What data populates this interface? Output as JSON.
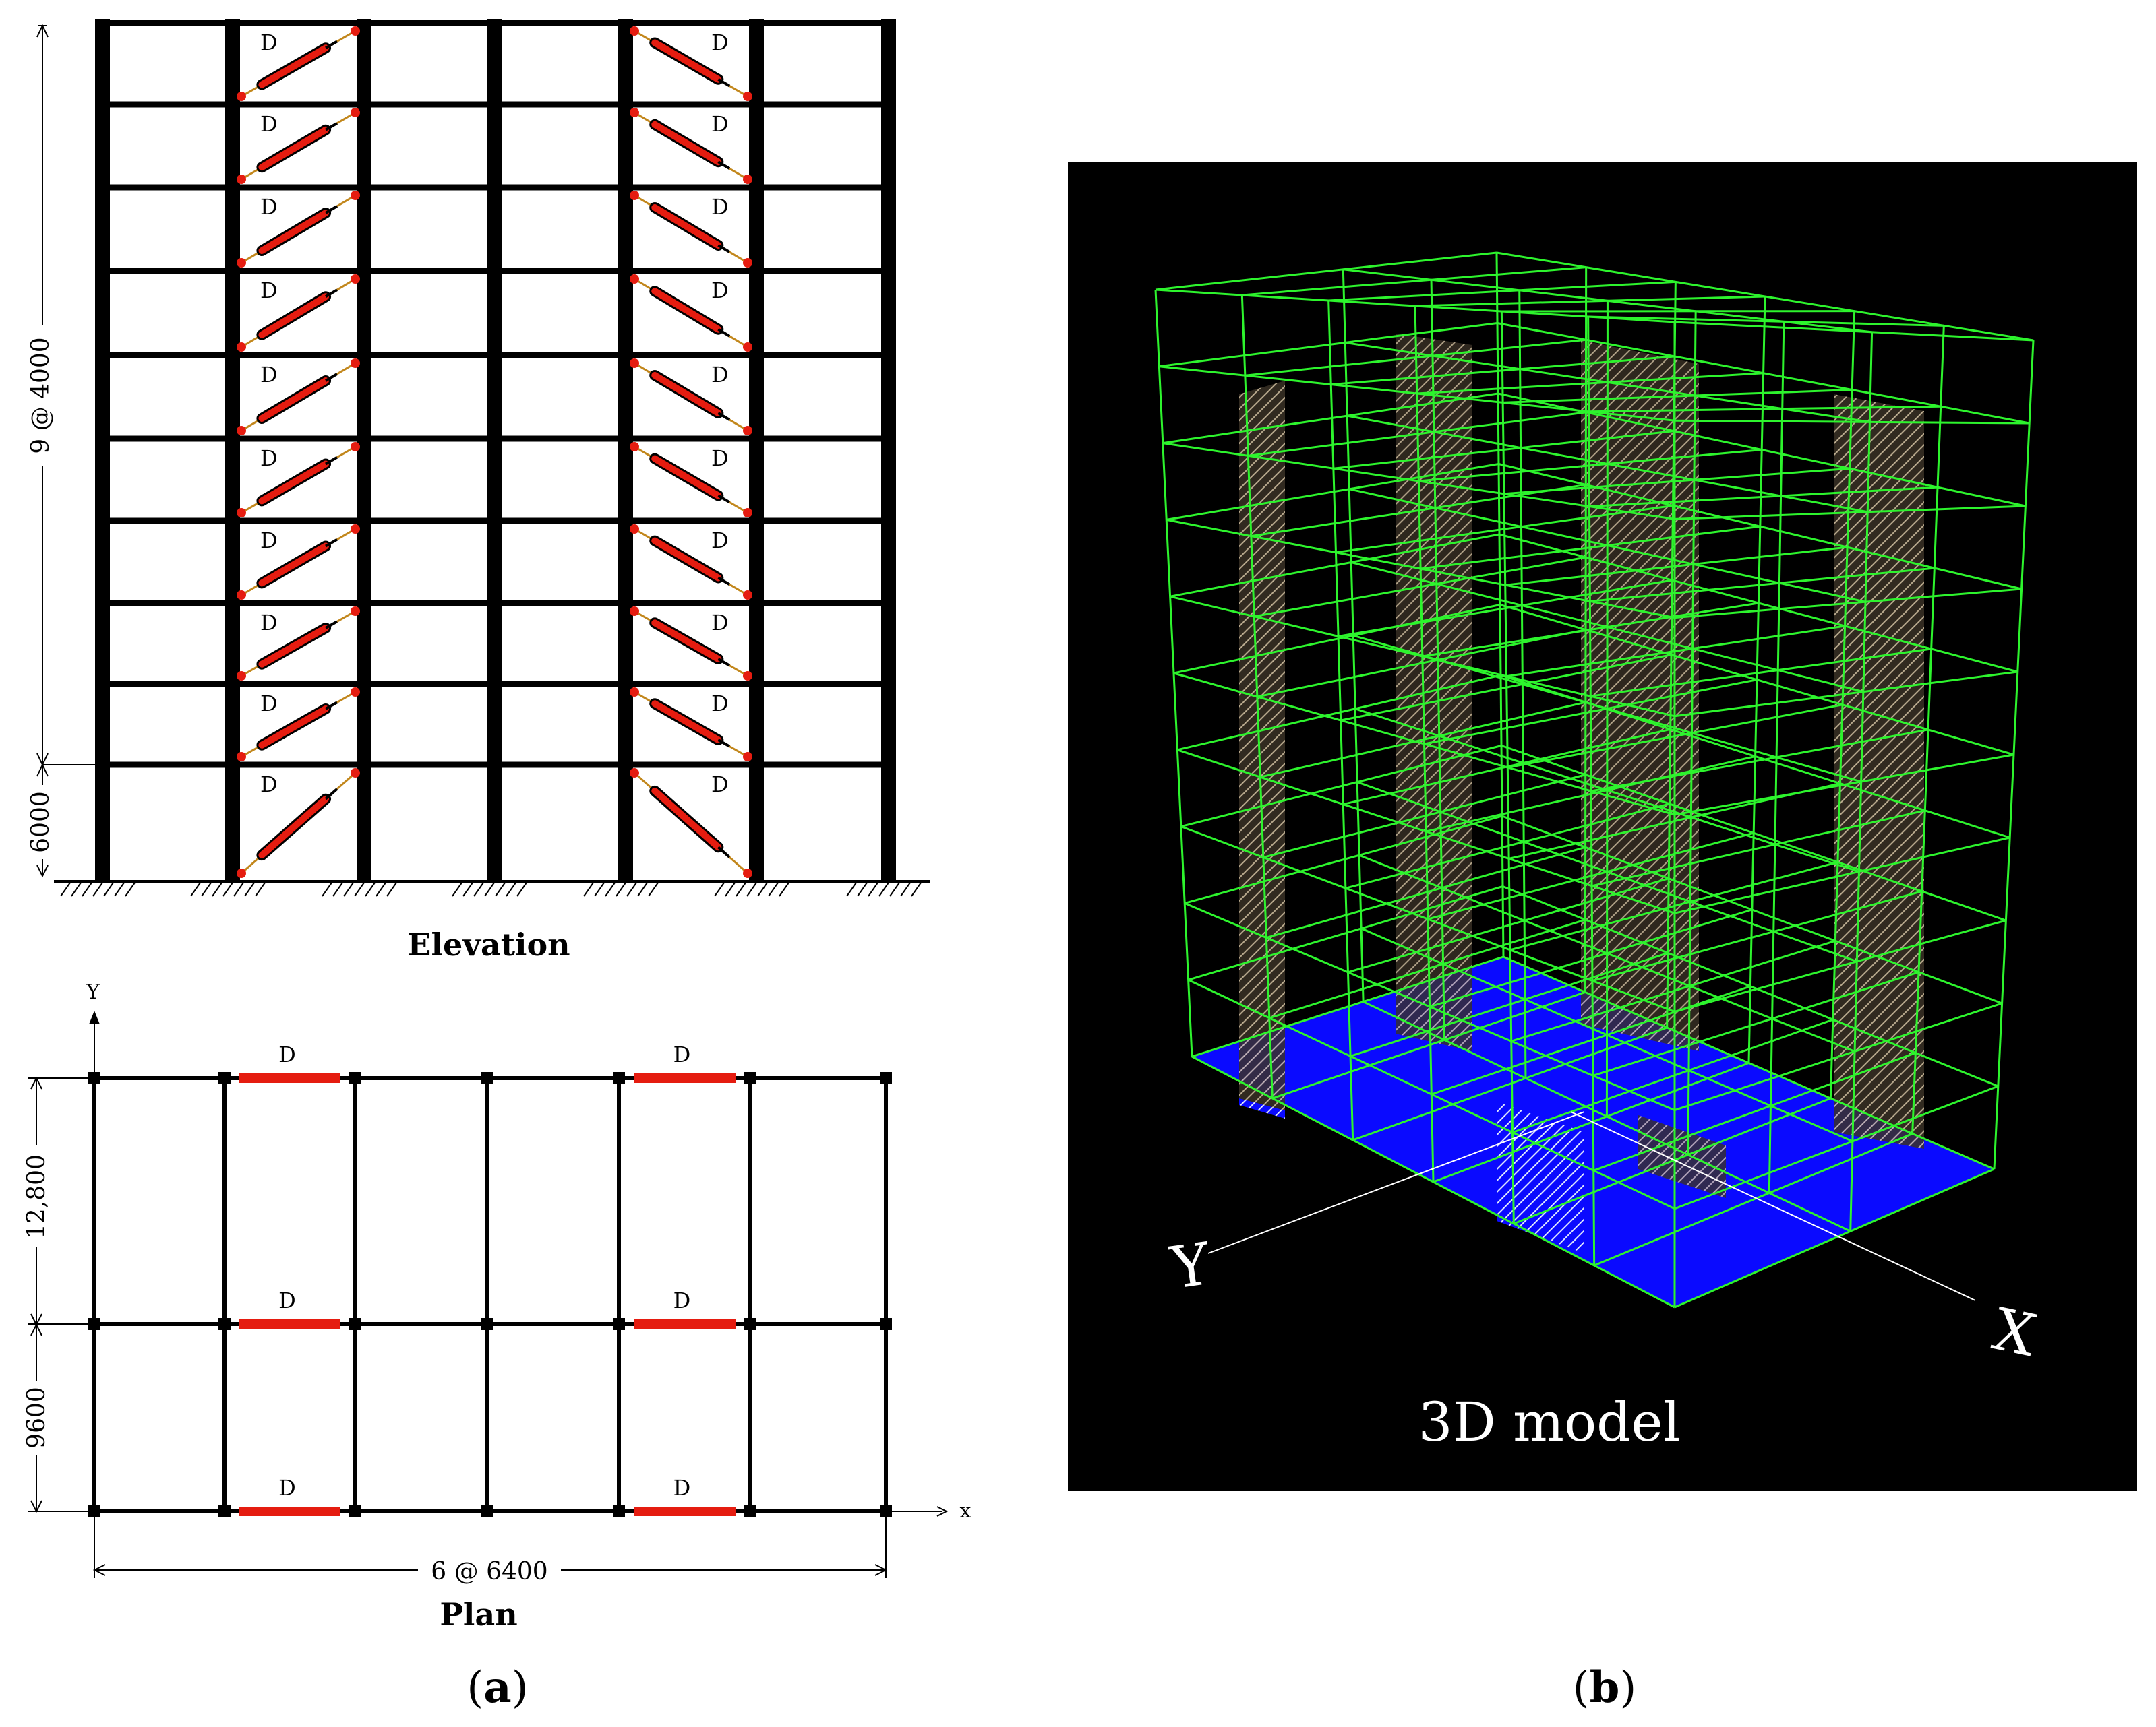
{
  "elevation": {
    "title": "Elevation",
    "dim_upper": "9 @ 4000",
    "dim_lower": "6000",
    "damper_label": "D"
  },
  "plan": {
    "title": "Plan",
    "dim_top": "12,800",
    "dim_bottom": "9600",
    "dim_width": "6 @ 6400",
    "axis_x": "x",
    "axis_y": "Y",
    "damper_label": "D"
  },
  "panel_a": {
    "label_open": "(",
    "letter": "a",
    "label_close": ")"
  },
  "panel_b": {
    "label_open": "(",
    "letter": "b",
    "label_close": ")"
  },
  "model3d": {
    "title": "3D model",
    "axis_x": "X",
    "axis_y": "Y"
  },
  "colors": {
    "damper": "#e51c10",
    "frame": "#000000",
    "wire": "#2df42d",
    "base": "#0a0aff",
    "background3d": "#000000"
  }
}
